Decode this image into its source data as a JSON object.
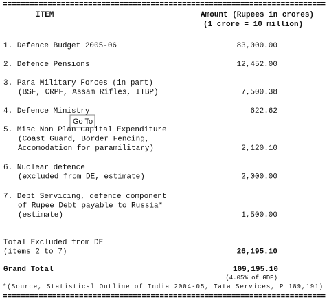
{
  "rules": {
    "top": "========================================================================",
    "bottom": "========================================================================"
  },
  "header": {
    "item": "ITEM",
    "amount": "Amount (Rupees in crores)",
    "note": "(1 crore = 10 million)"
  },
  "rows": [
    {
      "lines": [
        "1. Defence Budget 2005-06"
      ],
      "amount": "83,000.00"
    },
    {
      "lines": [
        "2. Defence Pensions"
      ],
      "amount": "12,452.00"
    },
    {
      "lines": [
        "3. Para Military Forces (in part)",
        "(BSF, CRPF, Assam Rifles, ITBP)"
      ],
      "amount": "7,500.38"
    },
    {
      "lines": [
        "4. Defence Ministry"
      ],
      "amount": "622.62"
    },
    {
      "lines": [
        "5. Misc Non Plan Capital Expenditure",
        "(Coast Guard, Border Fencing,",
        "Accomodation for paramilitary)"
      ],
      "amount": "2,120.10"
    },
    {
      "lines": [
        "6. Nuclear defence",
        "(excluded from DE, estimate)"
      ],
      "amount": "2,000.00"
    },
    {
      "lines": [
        "7. Debt Servicing, defence component",
        "of Rupee Debt payable to Russia*",
        "(estimate)"
      ],
      "amount": "1,500.00"
    }
  ],
  "total": {
    "lines": [
      "Total Excluded from DE",
      "(items 2 to 7)"
    ],
    "amount": "26,195.10"
  },
  "grand_total": {
    "label": "Grand Total",
    "amount": "109,195.10",
    "note": "(4.05% of GDP)"
  },
  "source": "*(Source, Statistical Outline of India 2004-05, Tata Services, P 189,191)",
  "tooltip": "Go To"
}
